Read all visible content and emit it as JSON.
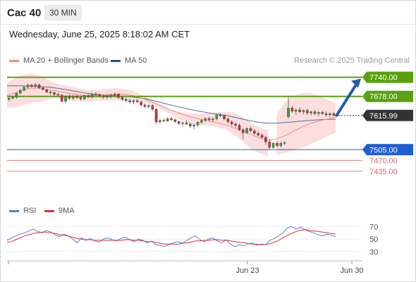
{
  "header": {
    "title": "Cac 40",
    "timeframe": "30 MIN",
    "timestamp": "Wednesday, June 25, 2025 8:18:02 AM CET"
  },
  "legend": {
    "ma20_label": "MA 20 + Bollinger Bands",
    "ma50_label": "MA 50",
    "credit": "Research © 2025 Trading Central",
    "rsi_label": "RSI",
    "ma9_label": "9MA"
  },
  "colors": {
    "ma20": "#f28b82",
    "ma50": "#1f4e9c",
    "bollinger_fill": "#fcdede",
    "resistance": "#5aa00f",
    "support": "#1f5fcf",
    "extra_support": "#e06666",
    "arrow": "#2a5aa8",
    "current_tag": "#333333",
    "rsi": "#5b7fd6",
    "rsi_ma": "#e03030",
    "candle_up": "#3c9a3c",
    "candle_down": "#c83232"
  },
  "chart_data": [
    {
      "type": "candlestick",
      "price_range": [
        7414,
        7762
      ],
      "x_labels": [
        "Jun 23",
        "Jun 30"
      ],
      "levels": [
        {
          "label": "7740.00",
          "value": 7740.0,
          "kind": "resistance"
        },
        {
          "label": "7678.00",
          "value": 7678.0,
          "kind": "resistance"
        },
        {
          "label": "7615.99",
          "value": 7615.99,
          "kind": "current"
        },
        {
          "label": "7505.00",
          "value": 7505.0,
          "kind": "support"
        },
        {
          "label": "7470.00",
          "value": 7470.0,
          "kind": "support-minor"
        },
        {
          "label": "7435.00",
          "value": 7435.0,
          "kind": "support-minor"
        }
      ],
      "ma20": [
        7680,
        7690,
        7700,
        7705,
        7704,
        7700,
        7695,
        7690,
        7685,
        7682,
        7680,
        7682,
        7684,
        7685,
        7684,
        7680,
        7672,
        7662,
        7650,
        7638,
        7628,
        7618,
        7610,
        7603,
        7598,
        7592,
        7585,
        7575,
        7565,
        7553,
        7543,
        7535,
        7540,
        7550,
        7565,
        7578,
        7590,
        7598,
        7604,
        7610
      ],
      "ma50": [
        7712,
        7712,
        7712,
        7711,
        7710,
        7708,
        7704,
        7700,
        7695,
        7690,
        7686,
        7683,
        7681,
        7680,
        7678,
        7676,
        7672,
        7667,
        7660,
        7653,
        7646,
        7640,
        7634,
        7629,
        7624,
        7620,
        7616,
        7610,
        7604,
        7598,
        7593,
        7591,
        7591,
        7593,
        7595,
        7598,
        7600,
        7602,
        7603,
        7604
      ],
      "bb_upper": [
        7722,
        7738,
        7750,
        7752,
        7744,
        7730,
        7718,
        7712,
        7708,
        7702,
        7698,
        7700,
        7703,
        7705,
        7702,
        7695,
        7683,
        7669,
        7655,
        7640,
        7630,
        7624,
        7622,
        7622,
        7624,
        7626,
        7628,
        7625,
        7610,
        7592,
        7575,
        7570,
        7620,
        7660,
        7680,
        7688,
        7690,
        7680,
        7668,
        7655
      ],
      "bb_lower": [
        7640,
        7642,
        7650,
        7658,
        7660,
        7668,
        7672,
        7668,
        7662,
        7662,
        7662,
        7664,
        7665,
        7665,
        7666,
        7665,
        7660,
        7652,
        7640,
        7625,
        7610,
        7596,
        7588,
        7584,
        7582,
        7578,
        7570,
        7552,
        7530,
        7508,
        7493,
        7482,
        7488,
        7494,
        7502,
        7512,
        7522,
        7535,
        7548,
        7560
      ],
      "candles": [
        [
          7668,
          7676,
          7663,
          7672
        ],
        [
          7672,
          7680,
          7668,
          7675
        ],
        [
          7675,
          7692,
          7670,
          7688
        ],
        [
          7688,
          7702,
          7685,
          7698
        ],
        [
          7698,
          7712,
          7694,
          7708
        ],
        [
          7708,
          7720,
          7702,
          7715
        ],
        [
          7715,
          7718,
          7706,
          7710
        ],
        [
          7710,
          7722,
          7705,
          7716
        ],
        [
          7716,
          7719,
          7702,
          7706
        ],
        [
          7706,
          7710,
          7697,
          7700
        ],
        [
          7700,
          7702,
          7688,
          7692
        ],
        [
          7692,
          7696,
          7683,
          7690
        ],
        [
          7690,
          7694,
          7680,
          7685
        ],
        [
          7685,
          7690,
          7676,
          7682
        ],
        [
          7682,
          7686,
          7658,
          7662
        ],
        [
          7662,
          7682,
          7655,
          7678
        ],
        [
          7678,
          7685,
          7668,
          7672
        ],
        [
          7672,
          7682,
          7666,
          7678
        ],
        [
          7678,
          7684,
          7670,
          7674
        ],
        [
          7674,
          7680,
          7664,
          7670
        ],
        [
          7670,
          7684,
          7666,
          7680
        ],
        [
          7680,
          7686,
          7672,
          7676
        ],
        [
          7676,
          7690,
          7670,
          7686
        ],
        [
          7686,
          7692,
          7680,
          7684
        ],
        [
          7684,
          7688,
          7674,
          7680
        ],
        [
          7680,
          7684,
          7670,
          7676
        ],
        [
          7676,
          7682,
          7668,
          7678
        ],
        [
          7678,
          7686,
          7672,
          7682
        ],
        [
          7682,
          7690,
          7676,
          7686
        ],
        [
          7686,
          7688,
          7670,
          7674
        ],
        [
          7674,
          7679,
          7662,
          7668
        ],
        [
          7668,
          7674,
          7658,
          7664
        ],
        [
          7664,
          7670,
          7654,
          7660
        ],
        [
          7660,
          7668,
          7652,
          7664
        ],
        [
          7664,
          7670,
          7656,
          7660
        ],
        [
          7660,
          7664,
          7645,
          7650
        ],
        [
          7650,
          7656,
          7640,
          7645
        ],
        [
          7645,
          7652,
          7638,
          7648
        ],
        [
          7648,
          7652,
          7630,
          7636
        ],
        [
          7636,
          7640,
          7588,
          7595
        ],
        [
          7595,
          7604,
          7589,
          7600
        ],
        [
          7600,
          7606,
          7594,
          7598
        ],
        [
          7598,
          7610,
          7595,
          7606
        ],
        [
          7606,
          7612,
          7598,
          7602
        ],
        [
          7602,
          7606,
          7592,
          7596
        ],
        [
          7596,
          7600,
          7585,
          7590
        ],
        [
          7590,
          7596,
          7580,
          7592
        ],
        [
          7592,
          7600,
          7585,
          7588
        ],
        [
          7588,
          7594,
          7575,
          7582
        ],
        [
          7582,
          7590,
          7572,
          7585
        ],
        [
          7585,
          7598,
          7580,
          7594
        ],
        [
          7594,
          7604,
          7588,
          7600
        ],
        [
          7600,
          7610,
          7594,
          7606
        ],
        [
          7606,
          7612,
          7596,
          7602
        ],
        [
          7602,
          7610,
          7595,
          7605
        ],
        [
          7605,
          7620,
          7600,
          7618
        ],
        [
          7618,
          7624,
          7610,
          7615
        ],
        [
          7615,
          7620,
          7600,
          7605
        ],
        [
          7605,
          7610,
          7590,
          7595
        ],
        [
          7595,
          7600,
          7582,
          7588
        ],
        [
          7588,
          7594,
          7576,
          7584
        ],
        [
          7584,
          7590,
          7565,
          7570
        ],
        [
          7570,
          7575,
          7538,
          7560
        ],
        [
          7560,
          7578,
          7555,
          7574
        ],
        [
          7574,
          7580,
          7562,
          7566
        ],
        [
          7566,
          7572,
          7552,
          7558
        ],
        [
          7558,
          7564,
          7548,
          7552
        ],
        [
          7552,
          7558,
          7540,
          7545
        ],
        [
          7545,
          7550,
          7520,
          7530
        ],
        [
          7530,
          7540,
          7505,
          7512
        ],
        [
          7512,
          7530,
          7508,
          7526
        ],
        [
          7526,
          7532,
          7512,
          7518
        ],
        [
          7518,
          7530,
          7512,
          7526
        ],
        [
          7526,
          7532,
          7520,
          7528
        ],
        [
          7612,
          7678,
          7606,
          7640
        ],
        [
          7640,
          7648,
          7624,
          7630
        ],
        [
          7630,
          7638,
          7618,
          7634
        ],
        [
          7634,
          7642,
          7624,
          7628
        ],
        [
          7628,
          7636,
          7620,
          7632
        ],
        [
          7632,
          7638,
          7618,
          7624
        ],
        [
          7624,
          7632,
          7616,
          7628
        ],
        [
          7628,
          7634,
          7618,
          7622
        ],
        [
          7622,
          7630,
          7614,
          7626
        ],
        [
          7626,
          7632,
          7618,
          7622
        ],
        [
          7622,
          7630,
          7612,
          7618
        ],
        [
          7618,
          7626,
          7610,
          7622
        ],
        [
          7622,
          7628,
          7612,
          7616
        ]
      ]
    },
    {
      "type": "line",
      "name": "RSI",
      "yticks": [
        70,
        50,
        30
      ],
      "ylim": [
        22,
        76
      ],
      "rsi": [
        48,
        52,
        55,
        58,
        60,
        63,
        66,
        62,
        60,
        64,
        61,
        57,
        54,
        58,
        55,
        50,
        44,
        52,
        48,
        51,
        47,
        45,
        50,
        52,
        49,
        47,
        51,
        53,
        49,
        46,
        50,
        48,
        44,
        47,
        41,
        40,
        38,
        42,
        44,
        46,
        43,
        48,
        52,
        55,
        49,
        46,
        50,
        52,
        47,
        44,
        49,
        42,
        38,
        41,
        39,
        42,
        44,
        40,
        42,
        41,
        48,
        51,
        55,
        60,
        68,
        70,
        66,
        69,
        65,
        62,
        60,
        57,
        55,
        58,
        56,
        54
      ],
      "rsi_ma": [
        45,
        46,
        49,
        52,
        55,
        57,
        59,
        60,
        61,
        61,
        60,
        59,
        57,
        56,
        55,
        53,
        51,
        50,
        49,
        49,
        48,
        48,
        48,
        48,
        48,
        48,
        48,
        49,
        49,
        48,
        48,
        47,
        46,
        46,
        45,
        43,
        42,
        42,
        42,
        42,
        43,
        44,
        45,
        47,
        47,
        48,
        48,
        49,
        49,
        48,
        48,
        47,
        46,
        45,
        44,
        43,
        42,
        42,
        41,
        41,
        43,
        45,
        48,
        52,
        56,
        59,
        62,
        64,
        65,
        64,
        63,
        62,
        61,
        60,
        59,
        58
      ]
    }
  ]
}
